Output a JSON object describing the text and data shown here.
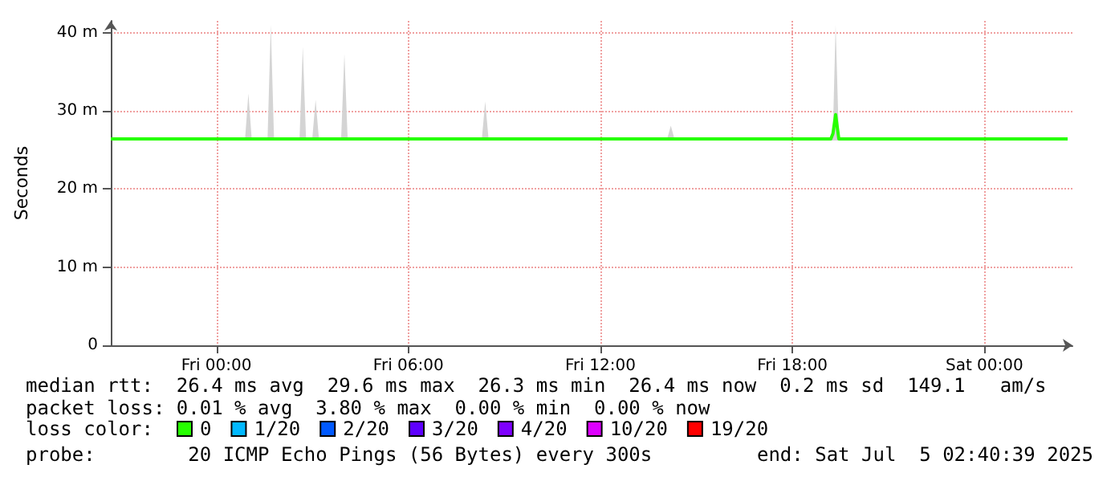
{
  "chart_data": {
    "type": "line",
    "ylabel": "Seconds",
    "legend_title": "loss color:",
    "legend": "bottom",
    "grid": true,
    "marker": "none",
    "line_style": "solid",
    "x": [
      "2025-07-03T20:42",
      "2025-07-04T00:54",
      "2025-07-04T01:00",
      "2025-07-04T01:06",
      "2025-07-04T01:36",
      "2025-07-04T01:42",
      "2025-07-04T01:48",
      "2025-07-04T02:36",
      "2025-07-04T02:42",
      "2025-07-04T02:48",
      "2025-07-04T03:00",
      "2025-07-04T03:06",
      "2025-07-04T03:12",
      "2025-07-04T03:54",
      "2025-07-04T04:00",
      "2025-07-04T04:06",
      "2025-07-04T08:18",
      "2025-07-04T08:24",
      "2025-07-04T08:30",
      "2025-07-04T14:06",
      "2025-07-04T14:12",
      "2025-07-04T14:18",
      "2025-07-04T19:12",
      "2025-07-04T19:16",
      "2025-07-04T19:21",
      "2025-07-04T19:27",
      "2025-07-04T19:33",
      "2025-07-05T02:36"
    ],
    "xlim": [
      "2025-07-03T20:42",
      "2025-07-05T02:45"
    ],
    "xticks": [
      {
        "value": "2025-07-04T00:00",
        "label": "Fri 00:00"
      },
      {
        "value": "2025-07-04T06:00",
        "label": "Fri 06:00"
      },
      {
        "value": "2025-07-04T12:00",
        "label": "Fri 12:00"
      },
      {
        "value": "2025-07-04T18:00",
        "label": "Fri 18:00"
      },
      {
        "value": "2025-07-05T00:00",
        "label": "Sat 00:00"
      }
    ],
    "ylim": [
      0,
      41.5
    ],
    "yticks": [
      0,
      {
        "value": 10,
        "label": "10 m"
      },
      {
        "value": 20,
        "label": "20 m"
      },
      {
        "value": 30,
        "label": "30 m"
      },
      {
        "value": 40,
        "label": "40 m"
      }
    ],
    "series": [
      {
        "name": "0",
        "color": "#26ff00",
        "values": [
          26.4,
          26.4,
          26.4,
          26.4,
          26.4,
          26.4,
          26.4,
          26.4,
          26.4,
          26.4,
          26.4,
          26.4,
          26.4,
          26.4,
          26.4,
          26.4,
          26.4,
          26.4,
          26.4,
          26.4,
          26.4,
          26.4,
          26.4,
          27.1,
          29.5,
          26.4,
          26.4,
          26.4
        ],
        "lower": [
          26.2,
          26.2,
          26.2,
          26.2,
          26.2,
          26.2,
          26.2,
          26.2,
          26.2,
          26.2,
          26.2,
          26.2,
          26.2,
          26.2,
          26.2,
          26.2,
          26.2,
          26.2,
          26.2,
          26.2,
          26.2,
          26.2,
          26.2,
          26.2,
          26.2,
          26.2,
          26.2,
          26.2
        ],
        "upper": [
          26.6,
          26.6,
          32.2,
          26.6,
          26.6,
          41.0,
          26.6,
          26.6,
          38.2,
          26.6,
          26.6,
          31.4,
          26.6,
          26.6,
          37.3,
          26.6,
          26.6,
          31.2,
          26.6,
          26.6,
          28.1,
          26.6,
          26.6,
          27.5,
          41.0,
          26.6,
          26.6,
          26.6
        ]
      },
      {
        "name": "1/20",
        "color": "#00b8ff",
        "values": [
          null,
          null,
          null,
          null,
          null,
          null,
          null,
          null,
          null,
          null,
          null,
          null,
          null,
          null,
          null,
          null,
          null,
          null,
          null,
          null,
          null,
          null,
          null,
          null,
          null,
          null,
          null,
          null
        ]
      },
      {
        "name": "2/20",
        "color": "#0059ff",
        "values": [
          null,
          null,
          null,
          null,
          null,
          null,
          null,
          null,
          null,
          null,
          null,
          null,
          null,
          null,
          null,
          null,
          null,
          null,
          null,
          null,
          null,
          null,
          null,
          null,
          null,
          null,
          null,
          null
        ]
      },
      {
        "name": "3/20",
        "color": "#5e00ff",
        "values": [
          null,
          null,
          null,
          null,
          null,
          null,
          null,
          null,
          null,
          null,
          null,
          null,
          null,
          null,
          null,
          null,
          null,
          null,
          null,
          null,
          null,
          null,
          null,
          null,
          null,
          null,
          null,
          null
        ]
      },
      {
        "name": "4/20",
        "color": "#7e00ff",
        "values": [
          null,
          null,
          null,
          null,
          null,
          null,
          null,
          null,
          null,
          null,
          null,
          null,
          null,
          null,
          null,
          null,
          null,
          null,
          null,
          null,
          null,
          null,
          null,
          null,
          null,
          null,
          null,
          null
        ]
      },
      {
        "name": "10/20",
        "color": "#dd00ff",
        "values": [
          null,
          null,
          null,
          null,
          null,
          null,
          null,
          null,
          null,
          null,
          null,
          null,
          null,
          null,
          null,
          null,
          null,
          null,
          null,
          null,
          null,
          null,
          null,
          null,
          null,
          null,
          null,
          null
        ]
      },
      {
        "name": "19/20",
        "color": "#ff0000",
        "values": [
          null,
          null,
          null,
          null,
          null,
          null,
          null,
          null,
          null,
          null,
          null,
          null,
          null,
          null,
          null,
          null,
          null,
          null,
          null,
          null,
          null,
          null,
          null,
          null,
          null,
          null,
          null,
          null
        ]
      }
    ],
    "annotations": [
      "median rtt:  26.4 ms avg  29.6 ms max  26.3 ms min  26.4 ms now  0.2 ms sd  149.1   am/s",
      "packet loss: 0.01 % avg  3.80 % max  0.00 % min  0.00 % now",
      "probe:        20 ICMP Echo Pings (56 Bytes) every 300s",
      "end: Sat Jul  5 02:40:39 2025"
    ]
  }
}
